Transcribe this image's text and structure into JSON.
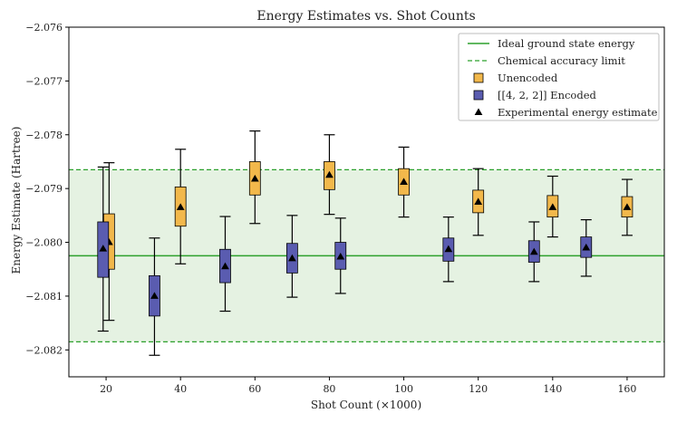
{
  "chart_data": {
    "type": "box",
    "title": "Energy Estimates vs. Shot Counts",
    "xlabel": "Shot Count (×1000)",
    "ylabel": "Energy Estimate (Hartree)",
    "xlim": [
      10,
      170
    ],
    "ylim": [
      -2.0825,
      -2.076
    ],
    "x_ticks": [
      20,
      40,
      60,
      80,
      100,
      120,
      140,
      160
    ],
    "y_ticks": [
      -2.082,
      -2.081,
      -2.08,
      -2.079,
      -2.078,
      -2.077,
      -2.076
    ],
    "y_tick_labels": [
      "−2.082",
      "−2.081",
      "−2.080",
      "−2.079",
      "−2.078",
      "−2.077",
      "−2.076"
    ],
    "ideal_ground_state_energy": -2.08025,
    "chemical_accuracy_band": [
      -2.08185,
      -2.07865
    ],
    "colors": {
      "ideal": "#2ca02c",
      "band_fill": "#e5f2e2",
      "unencoded": "#f2b84b",
      "encoded": "#5a5cb0",
      "marker": "#000000"
    },
    "series": [
      {
        "name": "Unencoded",
        "boxes": [
          {
            "x": 20.8,
            "whisker_low": -2.08145,
            "q1": -2.0805,
            "q3": -2.07947,
            "whisker_high": -2.07852,
            "mean": -2.08
          },
          {
            "x": 40,
            "whisker_low": -2.0804,
            "q1": -2.0797,
            "q3": -2.07897,
            "whisker_high": -2.07827,
            "mean": -2.07935
          },
          {
            "x": 60,
            "whisker_low": -2.07965,
            "q1": -2.07912,
            "q3": -2.0785,
            "whisker_high": -2.07793,
            "mean": -2.07882
          },
          {
            "x": 80,
            "whisker_low": -2.07948,
            "q1": -2.07902,
            "q3": -2.0785,
            "whisker_high": -2.078,
            "mean": -2.07875
          },
          {
            "x": 100,
            "whisker_low": -2.07953,
            "q1": -2.07912,
            "q3": -2.07863,
            "whisker_high": -2.07823,
            "mean": -2.07888
          },
          {
            "x": 120,
            "whisker_low": -2.07987,
            "q1": -2.07945,
            "q3": -2.07903,
            "whisker_high": -2.07863,
            "mean": -2.07925
          },
          {
            "x": 140,
            "whisker_low": -2.0799,
            "q1": -2.07953,
            "q3": -2.07913,
            "whisker_high": -2.07877,
            "mean": -2.07935
          },
          {
            "x": 160,
            "whisker_low": -2.07987,
            "q1": -2.07953,
            "q3": -2.07915,
            "whisker_high": -2.07883,
            "mean": -2.07935
          }
        ]
      },
      {
        "name": "[[4, 2, 2]] Encoded",
        "boxes": [
          {
            "x": 19.2,
            "whisker_low": -2.08165,
            "q1": -2.08065,
            "q3": -2.07962,
            "whisker_high": -2.0786,
            "mean": -2.08012
          },
          {
            "x": 33,
            "whisker_low": -2.0821,
            "q1": -2.08137,
            "q3": -2.08062,
            "whisker_high": -2.07992,
            "mean": -2.081
          },
          {
            "x": 52,
            "whisker_low": -2.08128,
            "q1": -2.08075,
            "q3": -2.08013,
            "whisker_high": -2.07952,
            "mean": -2.08045
          },
          {
            "x": 70,
            "whisker_low": -2.08102,
            "q1": -2.08057,
            "q3": -2.08002,
            "whisker_high": -2.0795,
            "mean": -2.0803
          },
          {
            "x": 83,
            "whisker_low": -2.08095,
            "q1": -2.0805,
            "q3": -2.08,
            "whisker_high": -2.07955,
            "mean": -2.08027
          },
          {
            "x": 112,
            "whisker_low": -2.08073,
            "q1": -2.08035,
            "q3": -2.07992,
            "whisker_high": -2.07953,
            "mean": -2.08013
          },
          {
            "x": 135,
            "whisker_low": -2.08073,
            "q1": -2.08037,
            "q3": -2.07997,
            "whisker_high": -2.07962,
            "mean": -2.08018
          },
          {
            "x": 149,
            "whisker_low": -2.08063,
            "q1": -2.08028,
            "q3": -2.0799,
            "whisker_high": -2.07958,
            "mean": -2.0801
          }
        ]
      }
    ],
    "legend": {
      "placement": "top-right",
      "entries": [
        {
          "label": "Ideal ground state energy",
          "kind": "solid-line"
        },
        {
          "label": "Chemical accuracy limit",
          "kind": "dashed-line"
        },
        {
          "label": "Unencoded",
          "kind": "box-unencoded"
        },
        {
          "label": "[[4, 2, 2]] Encoded",
          "kind": "box-encoded"
        },
        {
          "label": "Experimental energy estimate",
          "kind": "triangle"
        }
      ]
    }
  }
}
